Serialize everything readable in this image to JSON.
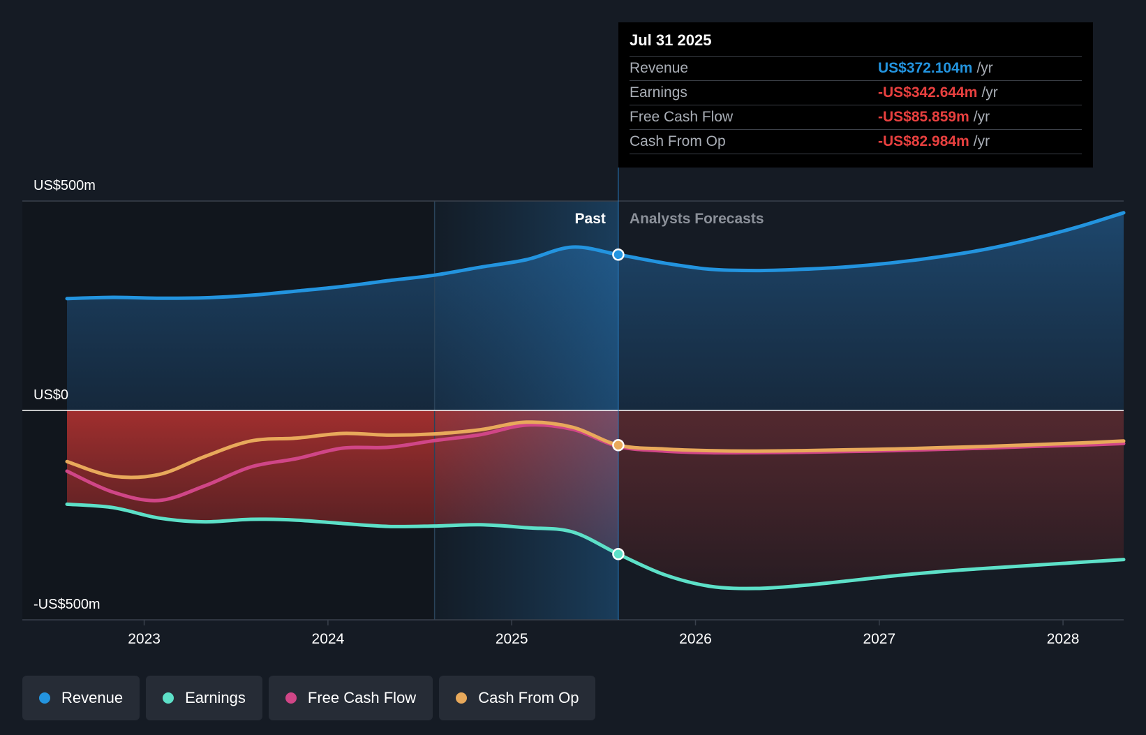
{
  "chart_data": {
    "type": "area",
    "y_axis": {
      "top_label": "US$500m",
      "zero_label": "US$0",
      "bottom_label": "-US$500m",
      "ylim": [
        -500,
        500
      ]
    },
    "x_axis": {
      "ticks": [
        "2023",
        "2024",
        "2025",
        "2026",
        "2027",
        "2028"
      ],
      "tick_values": [
        2023,
        2024,
        2025,
        2026,
        2027,
        2028
      ],
      "xlim": [
        2022.58,
        2028.33
      ]
    },
    "past_label": "Past",
    "forecast_label": "Analysts Forecasts",
    "divider_x": 2025.58,
    "highlight_start_x": 2024.58,
    "series": [
      {
        "name": "Revenue",
        "color": "#2394df",
        "x": [
          2022.58,
          2022.83,
          2023.08,
          2023.33,
          2023.58,
          2023.83,
          2024.08,
          2024.33,
          2024.58,
          2024.83,
          2025.08,
          2025.33,
          2025.58,
          2025.83,
          2026.08,
          2026.33,
          2026.58,
          2026.83,
          2027.08,
          2027.33,
          2027.58,
          2027.83,
          2028.08,
          2028.33
        ],
        "values": [
          267,
          270,
          268,
          269,
          275,
          285,
          296,
          310,
          323,
          342,
          360,
          390,
          372,
          352,
          337,
          334,
          337,
          343,
          353,
          367,
          385,
          409,
          438,
          472
        ]
      },
      {
        "name": "Earnings",
        "color": "#5de0c8",
        "x": [
          2022.58,
          2022.83,
          2023.08,
          2023.33,
          2023.58,
          2023.83,
          2024.08,
          2024.33,
          2024.58,
          2024.83,
          2025.08,
          2025.33,
          2025.58,
          2025.83,
          2026.08,
          2026.33,
          2026.58,
          2026.83,
          2027.08,
          2027.33,
          2027.58,
          2027.83,
          2028.08,
          2028.33
        ],
        "values": [
          -224,
          -232,
          -257,
          -266,
          -260,
          -262,
          -270,
          -277,
          -276,
          -273,
          -280,
          -290,
          -343,
          -392,
          -420,
          -425,
          -418,
          -407,
          -395,
          -385,
          -377,
          -370,
          -363,
          -356
        ]
      },
      {
        "name": "Free Cash Flow",
        "color": "#d04687",
        "x": [
          2022.58,
          2022.83,
          2023.08,
          2023.33,
          2023.58,
          2023.83,
          2024.08,
          2024.33,
          2024.58,
          2024.83,
          2025.08,
          2025.33,
          2025.58,
          2025.83,
          2026.08,
          2026.33,
          2026.58,
          2026.83,
          2027.08,
          2027.33,
          2027.58,
          2027.83,
          2028.08,
          2028.33
        ],
        "values": [
          -145,
          -195,
          -215,
          -180,
          -135,
          -115,
          -90,
          -88,
          -72,
          -58,
          -35,
          -45,
          -86,
          -97,
          -101,
          -101,
          -100,
          -98,
          -96,
          -93,
          -90,
          -86,
          -83,
          -79
        ]
      },
      {
        "name": "Cash From Op",
        "color": "#e8a95b",
        "x": [
          2022.58,
          2022.83,
          2023.08,
          2023.33,
          2023.58,
          2023.83,
          2024.08,
          2024.33,
          2024.58,
          2024.83,
          2025.08,
          2025.33,
          2025.58,
          2025.83,
          2026.08,
          2026.33,
          2026.58,
          2026.83,
          2027.08,
          2027.33,
          2027.58,
          2027.83,
          2028.08,
          2028.33
        ],
        "values": [
          -122,
          -157,
          -153,
          -110,
          -73,
          -66,
          -55,
          -59,
          -56,
          -46,
          -28,
          -40,
          -83,
          -92,
          -96,
          -97,
          -96,
          -94,
          -92,
          -89,
          -86,
          -82,
          -78,
          -73
        ]
      }
    ]
  },
  "tooltip": {
    "date": "Jul 31 2025",
    "rows": [
      {
        "label": "Revenue",
        "value": "US$372.104m",
        "unit": "/yr",
        "color": "#2394df"
      },
      {
        "label": "Earnings",
        "value": "-US$342.644m",
        "unit": "/yr",
        "color": "#e8403f"
      },
      {
        "label": "Free Cash Flow",
        "value": "-US$85.859m",
        "unit": "/yr",
        "color": "#e8403f"
      },
      {
        "label": "Cash From Op",
        "value": "-US$82.984m",
        "unit": "/yr",
        "color": "#e8403f"
      }
    ]
  },
  "legend": [
    {
      "label": "Revenue",
      "color": "#2394df"
    },
    {
      "label": "Earnings",
      "color": "#5de0c8"
    },
    {
      "label": "Free Cash Flow",
      "color": "#d04687"
    },
    {
      "label": "Cash From Op",
      "color": "#e8a95b"
    }
  ]
}
